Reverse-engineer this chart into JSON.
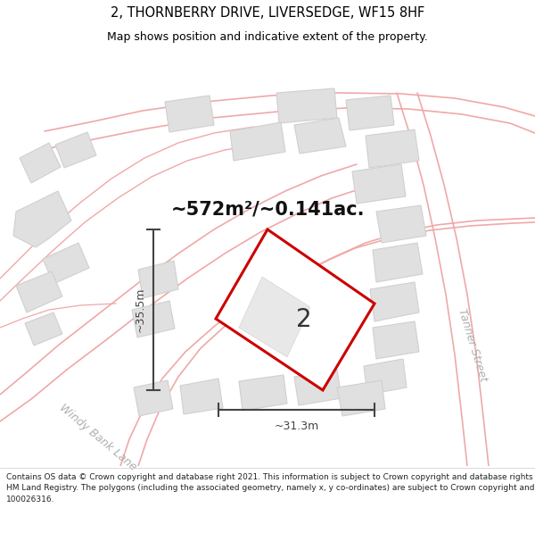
{
  "title": "2, THORNBERRY DRIVE, LIVERSEDGE, WF15 8HF",
  "subtitle": "Map shows position and indicative extent of the property.",
  "footer": "Contains OS data © Crown copyright and database right 2021. This information is subject to Crown copyright and database rights 2023 and is reproduced with the permission of\nHM Land Registry. The polygons (including the associated geometry, namely x, y co-ordinates) are subject to Crown copyright and database rights 2023 Ordnance Survey\n100026316.",
  "area_label": "~572m²/~0.141ac.",
  "property_number": "2",
  "dim_width": "~31.3m",
  "dim_height": "~35.5m",
  "map_bg": "#ffffff",
  "road_color": "#f0a8a8",
  "building_color": "#e0e0e0",
  "building_outline": "#d0d0d0",
  "property_outline": "#cc0000",
  "property_fill": "#ffffff",
  "dim_color": "#444444",
  "street_label_color": "#b0b0b0",
  "title_color": "#000000",
  "footer_color": "#222222",
  "road_label_windy": "Windy Bank Lane",
  "road_label_tanner": "Tanner Street",
  "title_fontsize": 10.5,
  "subtitle_fontsize": 9.0,
  "footer_fontsize": 6.5,
  "area_fontsize": 15,
  "prop_num_fontsize": 20,
  "dim_fontsize": 9,
  "street_fontsize": 9
}
